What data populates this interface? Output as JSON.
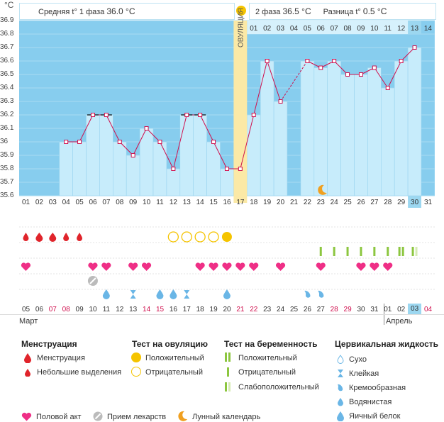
{
  "header": {
    "unit": "°C",
    "phase1_label": "Средняя t° 1 фаза",
    "phase1_value": "36.0 °C",
    "phase2_label": "2 фаза",
    "phase2_value": "36.5 °C",
    "diff_label": "Разница t°",
    "diff_value": "0.5 °C"
  },
  "ovulation_label": "ОВУЛЯЦИЯ",
  "colors": {
    "chart_bg": "#87cdee",
    "bar": "#c7ecfb",
    "line": "#d0104e",
    "ovulation": "#fbe9a6",
    "accent": "#f5c000",
    "green": "#8cc63f"
  },
  "chart_data": {
    "type": "line",
    "ylim": [
      35.6,
      36.9
    ],
    "yticks": [
      "36.9",
      "36.8",
      "36.7",
      "36.6",
      "36.5",
      "36.4",
      "36.3",
      "36.2",
      "36.1",
      "36",
      "35.9",
      "35.8",
      "35.7",
      "35.6"
    ],
    "cycle_days": [
      "01",
      "02",
      "03",
      "04",
      "05",
      "06",
      "07",
      "08",
      "09",
      "10",
      "11",
      "12",
      "13",
      "14",
      "15",
      "16",
      "17",
      "18",
      "19",
      "20",
      "21",
      "22",
      "23",
      "24",
      "25",
      "26",
      "27",
      "28",
      "29",
      "30",
      "31"
    ],
    "top_days": [
      "01",
      "02",
      "03",
      "04",
      "05",
      "06",
      "07",
      "08",
      "09",
      "10",
      "11",
      "12",
      "13",
      "14"
    ],
    "values": [
      null,
      null,
      null,
      36.0,
      36.0,
      36.2,
      36.2,
      36.0,
      35.9,
      36.1,
      36.0,
      35.8,
      36.2,
      36.2,
      36.0,
      35.8,
      35.8,
      36.2,
      36.6,
      36.3,
      null,
      36.6,
      36.55,
      36.6,
      36.5,
      36.5,
      36.55,
      36.4,
      36.6,
      36.7,
      null
    ],
    "ovulation_day": 17,
    "current_day": 30
  },
  "dates": {
    "values": [
      "05",
      "06",
      "07",
      "08",
      "09",
      "10",
      "11",
      "12",
      "13",
      "14",
      "15",
      "16",
      "17",
      "18",
      "19",
      "20",
      "21",
      "22",
      "23",
      "24",
      "25",
      "26",
      "27",
      "28",
      "29",
      "30",
      "31",
      "01",
      "02",
      "03",
      "04"
    ],
    "red": [
      "07",
      "08",
      "14",
      "15",
      "21",
      "22",
      "28",
      "29",
      "04"
    ],
    "month1": "Март",
    "month2": "Апрель"
  },
  "legend": {
    "mens": {
      "title": "Менструация",
      "item1": "Менструация",
      "item2": "Небольшие выделения"
    },
    "ov": {
      "title": "Тест на овуляцию",
      "item1": "Положительный",
      "item2": "Отрицательный"
    },
    "preg": {
      "title": "Тест на беременность",
      "item1": "Положительный",
      "item2": "Отрицательный",
      "item3": "Слабоположительный"
    },
    "cerv": {
      "title": "Цервикальная жидкость",
      "item1": "Сухо",
      "item2": "Клейкая",
      "item3": "Кремообразная",
      "item4": "Водянистая",
      "item5": "Яичный белок"
    },
    "bottom": {
      "sex": "Половой акт",
      "meds": "Прием лекарств",
      "moon": "Лунный календарь"
    }
  }
}
